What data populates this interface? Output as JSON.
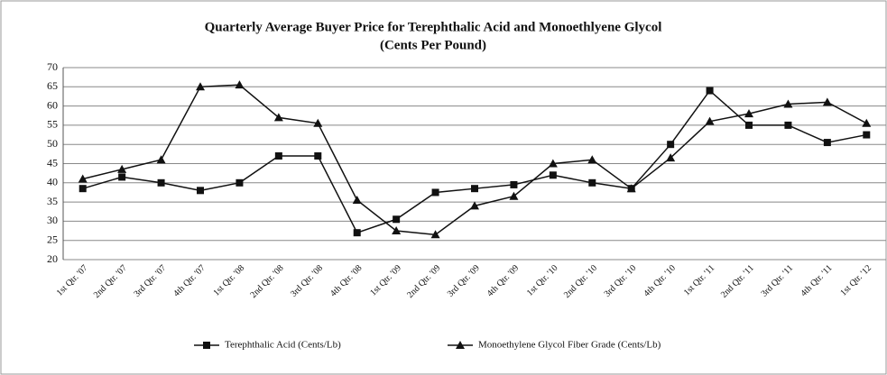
{
  "chart_data": {
    "type": "line",
    "title": "Quarterly Average Buyer Price for Terephthalic Acid and Monoethlyene Glycol",
    "subtitle": "(Cents Per Pound)",
    "categories": [
      "1st Qtr. '07",
      "2nd Qtr. '07",
      "3rd Qtr. '07",
      "4th Qtr. '07",
      "1st Qtr. '08",
      "2nd Qtr. '08",
      "3rd Qtr. '08",
      "4th Qtr. '08",
      "1st Qtr. '09",
      "2nd Qtr. '09",
      "3rd Qtr. '09",
      "4th Qtr. '09",
      "1st Qtr. '10",
      "2nd Qtr. '10",
      "3rd Qtr. '10",
      "4th Qtr. '10",
      "1st Qtr. '11",
      "2nd Qtr. '11",
      "3rd Qtr. '11",
      "4th Qtr. '11",
      "1st Qtr. '12"
    ],
    "series": [
      {
        "name": "Terephthalic Acid (Cents/Lb)",
        "color": "#111111",
        "marker": "square",
        "values": [
          38.5,
          41.5,
          40,
          38,
          40,
          47,
          47,
          27,
          30.5,
          37.5,
          38.5,
          39.5,
          42,
          40,
          38.5,
          50,
          64,
          55,
          55,
          50.5,
          52.5
        ]
      },
      {
        "name": "Monoethylene Glycol Fiber Grade (Cents/Lb)",
        "color": "#111111",
        "marker": "triangle",
        "values": [
          41,
          43.5,
          46,
          65,
          65.5,
          57,
          55.5,
          35.5,
          27.5,
          26.5,
          34,
          36.5,
          45,
          46,
          38.5,
          46.5,
          56,
          58,
          60.5,
          61,
          55.5
        ]
      }
    ],
    "ylim": [
      20,
      70
    ],
    "yticks": [
      20,
      25,
      30,
      35,
      40,
      45,
      50,
      55,
      60,
      65,
      70
    ],
    "grid": true
  }
}
